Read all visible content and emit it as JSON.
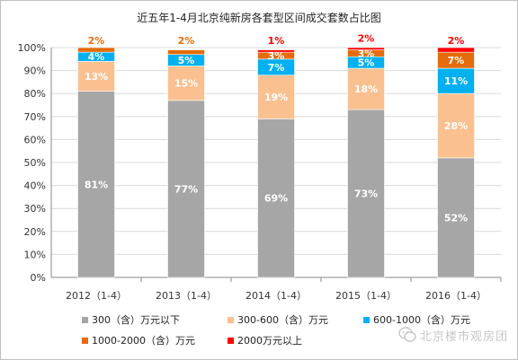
{
  "chart_data": {
    "type": "bar",
    "stacked": true,
    "title": "近五年1-4月北京纯新房各套型区间成交套数占比图",
    "categories": [
      "2012（1-4）",
      "2013（1-4）",
      "2014（1-4）",
      "2015（1-4）",
      "2016（1-4）"
    ],
    "ylim": [
      0,
      100
    ],
    "yticks": [
      "0%",
      "10%",
      "20%",
      "30%",
      "40%",
      "50%",
      "60%",
      "70%",
      "80%",
      "90%",
      "100%"
    ],
    "grid": true,
    "legend_position": "bottom",
    "series": [
      {
        "name": "300（含）万元以下",
        "color": "#a6a6a6",
        "label_color": "#ffffff",
        "values": [
          81,
          77,
          69,
          73,
          52
        ],
        "labels": [
          "81%",
          "77%",
          "69%",
          "73%",
          "52%"
        ]
      },
      {
        "name": "300-600（含）万元",
        "color": "#fac090",
        "label_color": "#ffffff",
        "values": [
          13,
          15,
          19,
          18,
          28
        ],
        "labels": [
          "13%",
          "15%",
          "19%",
          "18%",
          "28%"
        ]
      },
      {
        "name": "600-1000（含）万元",
        "color": "#00b0f0",
        "label_color": "#ffffff",
        "values": [
          4,
          5,
          7,
          5,
          11
        ],
        "labels": [
          "4%",
          "5%",
          "7%",
          "5%",
          "11%"
        ]
      },
      {
        "name": "1000-2000（含）万元",
        "color": "#e46c0a",
        "label_color": "#ffffff",
        "values": [
          2,
          2,
          3,
          3,
          7
        ],
        "labels": [
          "2%",
          "2%",
          "3%",
          "3%",
          "7%"
        ],
        "label_above": [
          true,
          true,
          false,
          false,
          false
        ]
      },
      {
        "name": "2000万元以上",
        "color": "#ff0000",
        "label_color": "#ff0000",
        "values": [
          0,
          0,
          1,
          2,
          2
        ],
        "labels": [
          "",
          "",
          "1%",
          "2%",
          "2%"
        ],
        "label_above": [
          false,
          false,
          true,
          true,
          true
        ]
      }
    ]
  },
  "watermark": {
    "text": "北京楼市观房团",
    "icon": "wechat-icon"
  }
}
